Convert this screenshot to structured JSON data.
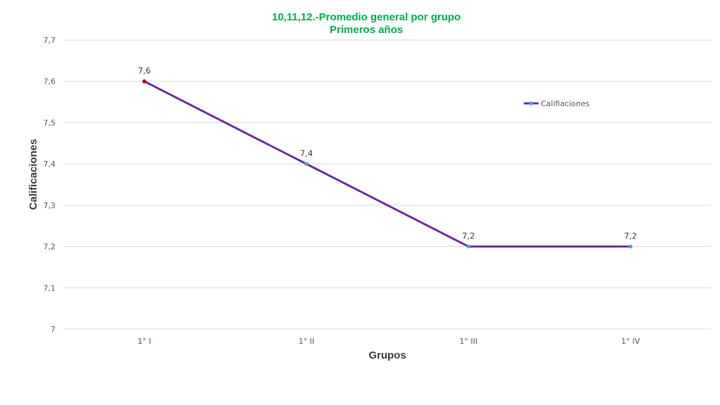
{
  "chart_data": {
    "type": "line",
    "title": "10,11,12.-Promedio general por grupo",
    "subtitle": "Primeros años",
    "xlabel": "Grupos",
    "ylabel": "Calificaciones",
    "categories": [
      "1° I",
      "1° II",
      "1° III",
      "1° IV"
    ],
    "series": [
      {
        "name": "Califiaciones",
        "values": [
          7.6,
          7.4,
          7.2,
          7.2
        ]
      }
    ],
    "data_labels": [
      "7,6",
      "7,4",
      "7,2",
      "7,2"
    ],
    "ylim": [
      7,
      7.7
    ],
    "yticks": [
      7,
      7.1,
      7.2,
      7.3,
      7.4,
      7.5,
      7.6,
      7.7
    ],
    "ytick_labels": [
      "7",
      "7,1",
      "7,2",
      "7,3",
      "7,4",
      "7,5",
      "7,6",
      "7,7"
    ],
    "grid": true,
    "legend": "top-right",
    "colors": {
      "title": "#00B050",
      "line": "#7030A0",
      "marker": "#5B9BD5",
      "first_marker": "#C00000",
      "grid": "#D9D9D9"
    }
  }
}
